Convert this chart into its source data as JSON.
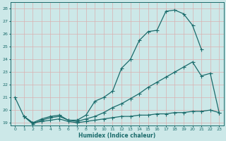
{
  "xlabel": "Humidex (Indice chaleur)",
  "bg_color": "#cce8e8",
  "line_color": "#1a6b6b",
  "grid_color": "#b0d0d0",
  "xlim": [
    -0.5,
    23.5
  ],
  "ylim": [
    18.8,
    28.5
  ],
  "yticks": [
    19,
    20,
    21,
    22,
    23,
    24,
    25,
    26,
    27,
    28
  ],
  "xticks": [
    0,
    1,
    2,
    3,
    4,
    5,
    6,
    7,
    8,
    9,
    10,
    11,
    12,
    13,
    14,
    15,
    16,
    17,
    18,
    19,
    20,
    21,
    22,
    23
  ],
  "curve1_x": [
    0,
    1,
    2,
    3,
    4,
    5,
    6,
    7,
    8,
    9,
    10,
    11,
    12,
    13,
    14,
    15,
    16,
    17,
    18,
    19,
    20,
    21
  ],
  "curve1_y": [
    21.0,
    19.5,
    18.9,
    19.2,
    19.4,
    19.5,
    19.2,
    19.2,
    19.6,
    20.7,
    21.0,
    21.5,
    23.3,
    24.0,
    25.5,
    26.2,
    26.3,
    27.8,
    27.9,
    27.6,
    26.7,
    24.8
  ],
  "curve2_x": [
    1,
    2,
    3,
    4,
    5,
    6,
    7,
    8,
    9,
    10,
    11,
    12,
    13,
    14,
    15,
    16,
    17,
    18,
    19,
    20,
    21,
    22,
    23
  ],
  "curve2_y": [
    19.5,
    19.0,
    19.3,
    19.5,
    19.6,
    19.2,
    19.1,
    19.3,
    19.5,
    19.8,
    20.2,
    20.5,
    20.9,
    21.3,
    21.8,
    22.2,
    22.6,
    23.0,
    23.4,
    23.8,
    22.7,
    22.9,
    19.8
  ],
  "curve3_x": [
    1,
    2,
    3,
    4,
    5,
    6,
    7,
    8,
    9,
    10,
    11,
    12,
    13,
    14,
    15,
    16,
    17,
    18,
    19,
    20,
    21,
    22,
    23
  ],
  "curve3_y": [
    19.5,
    19.0,
    19.1,
    19.2,
    19.3,
    19.1,
    19.0,
    19.1,
    19.2,
    19.3,
    19.4,
    19.5,
    19.5,
    19.6,
    19.6,
    19.7,
    19.7,
    19.8,
    19.8,
    19.9,
    19.9,
    20.0,
    19.8
  ]
}
